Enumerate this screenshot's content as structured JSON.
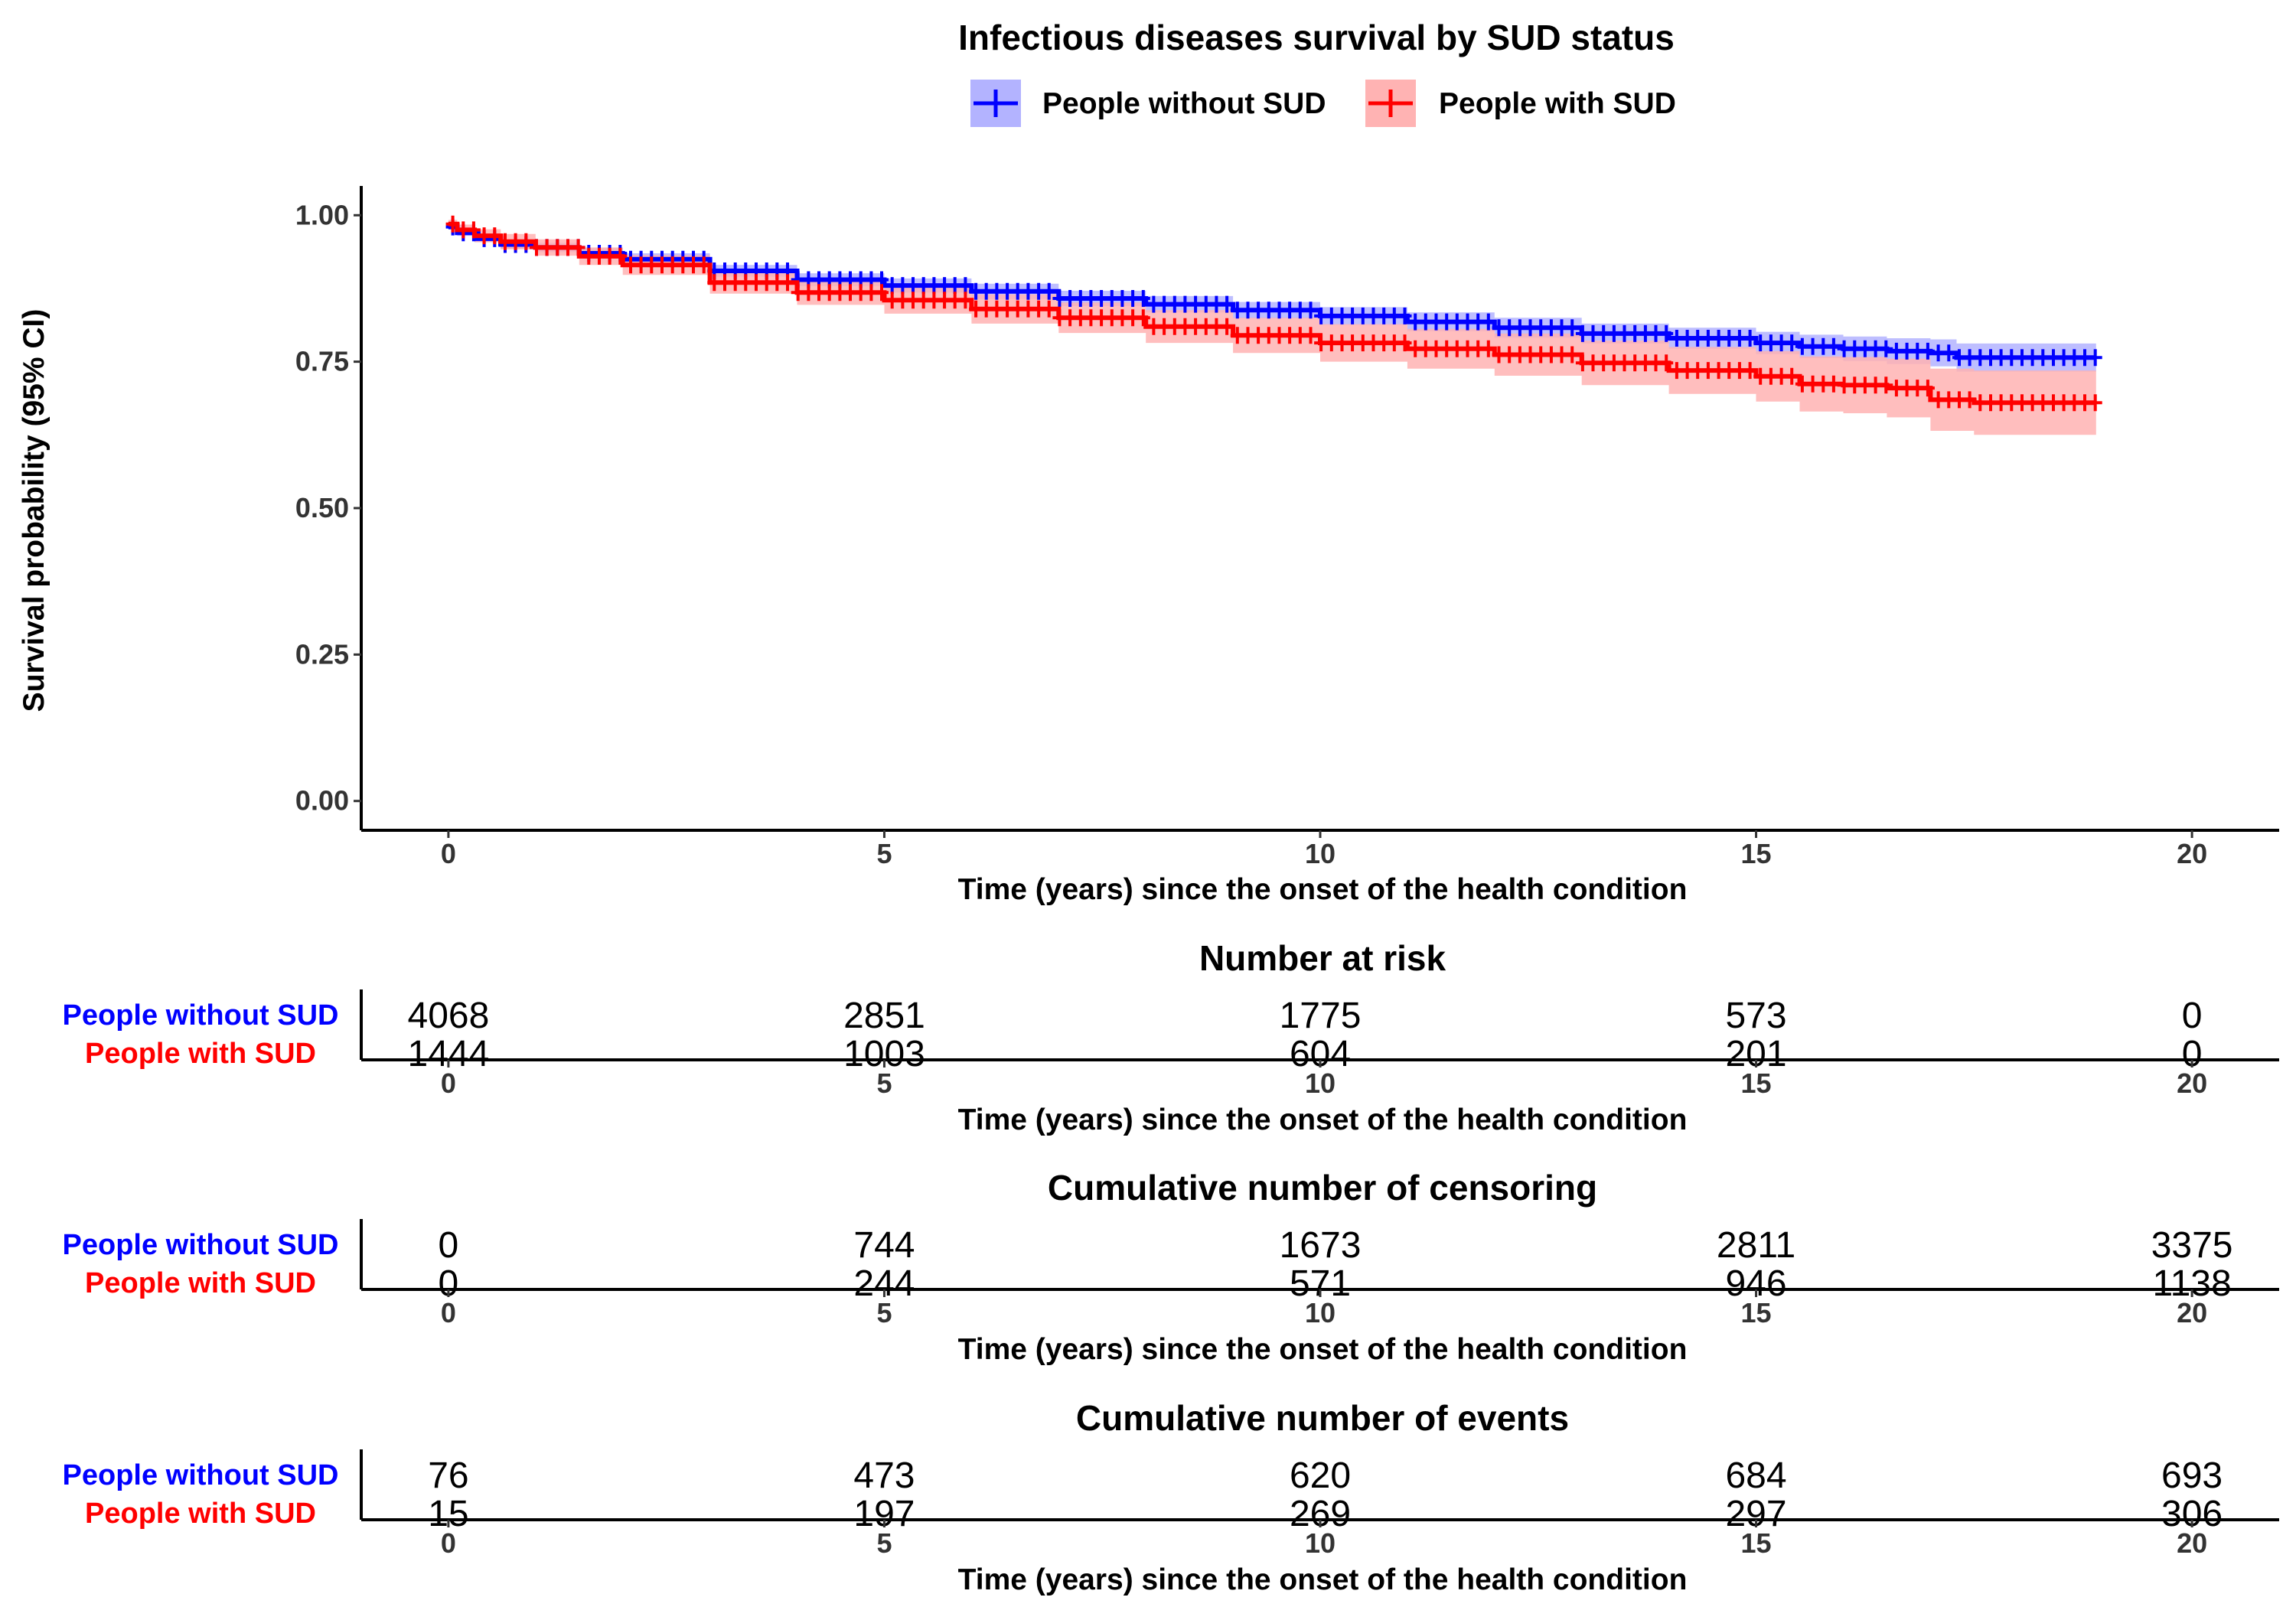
{
  "chart_data": [
    {
      "type": "line",
      "subtype": "kaplan-meier",
      "title": "Infectious diseases survival by SUD status",
      "xlabel": "Time (years) since the onset of the health condition",
      "ylabel": "Survival probability (95% CI)",
      "xlim": [
        -1,
        21
      ],
      "ylim": [
        -0.05,
        1.05
      ],
      "x_ticks": [
        0,
        5,
        10,
        15,
        20
      ],
      "y_ticks": [
        0.0,
        0.25,
        0.5,
        0.75,
        1.0
      ],
      "y_tick_labels": [
        "0.00",
        "0.25",
        "0.50",
        "0.75",
        "1.00"
      ],
      "legend_position": "top",
      "grid": false,
      "series": [
        {
          "name": "People without SUD",
          "color": "#0000ff",
          "band_color": "#b3b3ff",
          "x": [
            0,
            0.1,
            0.3,
            0.6,
            1,
            1.5,
            2,
            3,
            4,
            5,
            6,
            7,
            8,
            9,
            10,
            11,
            12,
            13,
            14,
            15,
            15.5,
            16,
            16.5,
            17,
            17.3,
            18,
            18.5,
            18.9
          ],
          "y": [
            0.98,
            0.97,
            0.96,
            0.95,
            0.945,
            0.935,
            0.925,
            0.905,
            0.89,
            0.88,
            0.87,
            0.858,
            0.848,
            0.838,
            0.828,
            0.818,
            0.808,
            0.798,
            0.79,
            0.782,
            0.776,
            0.772,
            0.768,
            0.765,
            0.757,
            0.757,
            0.757,
            0.757
          ],
          "lower": [
            0.976,
            0.965,
            0.954,
            0.943,
            0.937,
            0.926,
            0.915,
            0.895,
            0.879,
            0.868,
            0.857,
            0.845,
            0.834,
            0.824,
            0.813,
            0.802,
            0.791,
            0.781,
            0.772,
            0.763,
            0.756,
            0.751,
            0.746,
            0.742,
            0.733,
            0.733,
            0.733,
            0.733
          ],
          "upper": [
            0.984,
            0.975,
            0.966,
            0.957,
            0.953,
            0.944,
            0.935,
            0.915,
            0.901,
            0.892,
            0.883,
            0.871,
            0.862,
            0.852,
            0.843,
            0.834,
            0.825,
            0.815,
            0.808,
            0.801,
            0.796,
            0.793,
            0.79,
            0.788,
            0.781,
            0.781,
            0.781,
            0.781
          ]
        },
        {
          "name": "People with SUD",
          "color": "#ff0000",
          "band_color": "#ffb3b3",
          "x": [
            0,
            0.1,
            0.3,
            0.6,
            1,
            1.5,
            2,
            3,
            4,
            5,
            6,
            7,
            8,
            9,
            10,
            11,
            12,
            13,
            14,
            15,
            15.5,
            16,
            16.5,
            17,
            17.5,
            18,
            18.5,
            18.9
          ],
          "y": [
            0.985,
            0.975,
            0.965,
            0.955,
            0.945,
            0.93,
            0.915,
            0.885,
            0.868,
            0.855,
            0.84,
            0.825,
            0.81,
            0.795,
            0.782,
            0.772,
            0.762,
            0.748,
            0.735,
            0.725,
            0.712,
            0.71,
            0.705,
            0.685,
            0.68,
            0.68,
            0.68,
            0.68
          ],
          "lower": [
            0.978,
            0.966,
            0.954,
            0.942,
            0.931,
            0.915,
            0.898,
            0.866,
            0.847,
            0.832,
            0.815,
            0.799,
            0.782,
            0.765,
            0.75,
            0.738,
            0.726,
            0.71,
            0.695,
            0.682,
            0.665,
            0.662,
            0.655,
            0.632,
            0.625,
            0.625,
            0.625,
            0.625
          ],
          "upper": [
            0.992,
            0.984,
            0.976,
            0.968,
            0.959,
            0.945,
            0.932,
            0.904,
            0.889,
            0.878,
            0.865,
            0.851,
            0.838,
            0.825,
            0.814,
            0.806,
            0.798,
            0.786,
            0.775,
            0.768,
            0.759,
            0.758,
            0.755,
            0.738,
            0.735,
            0.735,
            0.735,
            0.735
          ]
        }
      ]
    },
    {
      "type": "table",
      "title": "Number at risk",
      "xlabel": "Time (years) since the onset of the health condition",
      "x": [
        0,
        5,
        10,
        15,
        20
      ],
      "rows": [
        {
          "name": "People without SUD",
          "color": "#0000ff",
          "values": [
            "4068",
            "2851",
            "1775",
            "573",
            "0"
          ]
        },
        {
          "name": "People with SUD",
          "color": "#ff0000",
          "values": [
            "1444",
            "1003",
            "604",
            "201",
            "0"
          ]
        }
      ]
    },
    {
      "type": "table",
      "title": "Cumulative number of censoring",
      "xlabel": "Time (years) since the onset of the health condition",
      "x": [
        0,
        5,
        10,
        15,
        20
      ],
      "rows": [
        {
          "name": "People without SUD",
          "color": "#0000ff",
          "values": [
            "0",
            "744",
            "1673",
            "2811",
            "3375"
          ]
        },
        {
          "name": "People with SUD",
          "color": "#ff0000",
          "values": [
            "0",
            "244",
            "571",
            "946",
            "1138"
          ]
        }
      ]
    },
    {
      "type": "table",
      "title": "Cumulative number of events",
      "xlabel": "Time (years) since the onset of the health condition",
      "x": [
        0,
        5,
        10,
        15,
        20
      ],
      "rows": [
        {
          "name": "People without SUD",
          "color": "#0000ff",
          "values": [
            "76",
            "473",
            "620",
            "684",
            "693"
          ]
        },
        {
          "name": "People with SUD",
          "color": "#ff0000",
          "values": [
            "15",
            "197",
            "269",
            "297",
            "306"
          ]
        }
      ]
    }
  ]
}
